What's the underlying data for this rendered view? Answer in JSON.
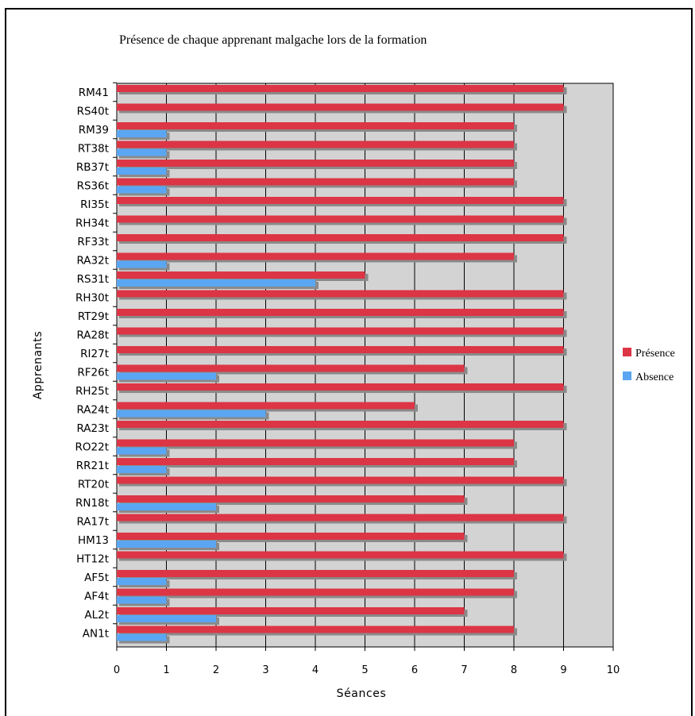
{
  "chart_data": {
    "type": "bar",
    "orientation": "horizontal",
    "title": "Présence de chaque apprenant malgache lors de la formation",
    "xlabel": "Séances",
    "ylabel": "Apprenants",
    "xlim": [
      0,
      10
    ],
    "x_ticks": [
      "0",
      "1",
      "2",
      "3",
      "4",
      "5",
      "6",
      "7",
      "8",
      "9",
      "10"
    ],
    "grid": true,
    "legend_position": "right",
    "categories": [
      "RM41",
      "RS40t",
      "RM39",
      "RT38t",
      "RB37t",
      "RS36t",
      "RI35t",
      "RH34t",
      "RF33t",
      "RA32t",
      "RS31t",
      "RH30t",
      "RT29t",
      "RA28t",
      "RI27t",
      "RF26t",
      "RH25t",
      "RA24t",
      "RA23t",
      "RO22t",
      "RR21t",
      "RT20t",
      "RN18t",
      "RA17t",
      "HM13",
      "HT12t",
      "AF5t",
      "AF4t",
      "AL2t",
      "AN1t"
    ],
    "series": [
      {
        "name": "Présence",
        "color": "#dc3545",
        "values": [
          9,
          9,
          8,
          8,
          8,
          8,
          9,
          9,
          9,
          8,
          5,
          9,
          9,
          9,
          9,
          7,
          9,
          6,
          9,
          8,
          8,
          9,
          7,
          9,
          7,
          9,
          8,
          8,
          7,
          8
        ]
      },
      {
        "name": "Absence",
        "color": "#5ba6f2",
        "values": [
          0,
          0,
          1,
          1,
          1,
          1,
          0,
          0,
          0,
          1,
          4,
          0,
          0,
          0,
          0,
          2,
          0,
          3,
          0,
          1,
          1,
          0,
          2,
          0,
          2,
          0,
          1,
          1,
          2,
          1
        ]
      }
    ],
    "plot_background": "#d3d3d3"
  }
}
